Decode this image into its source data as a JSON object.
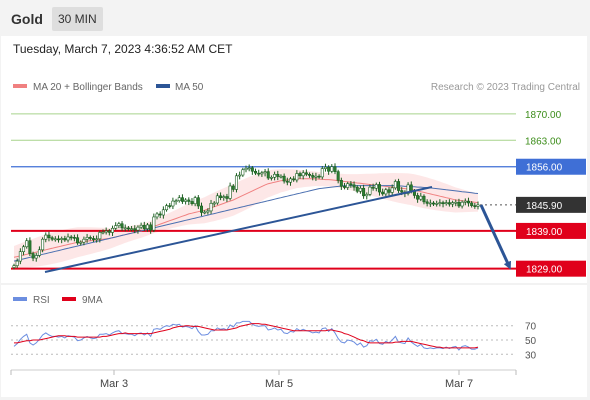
{
  "header": {
    "title": "Gold",
    "timeframe": "30 MIN"
  },
  "datetime": "Tuesday, March 7, 2023 4:36:52 AM CET",
  "legend": {
    "ma20_label": "MA 20 + Bollinger Bands",
    "ma50_label": "MA 50",
    "credit": "Research © 2023 Trading Central"
  },
  "rsi_legend": {
    "rsi_label": "RSI",
    "ma_label": "9MA"
  },
  "colors": {
    "candle_up": "#2e7d32",
    "candle_down": "#2e7d32",
    "bollinger_fill": "#fde3e3",
    "ma20": "#f08080",
    "ma50": "#4a6fb0",
    "trendline": "#2c5596",
    "resistance_green": "#a7d38c",
    "resistance_blue": "#3f6fd6",
    "support_red": "#e0001b",
    "last_price_tag": "#333333",
    "rsi_line": "#6c8ee0",
    "rsi_ma": "#e0001b"
  },
  "chart_data": [
    {
      "type": "candlestick",
      "x_ticks": [
        "Mar 3",
        "Mar 5",
        "Mar 7"
      ],
      "y_ticks": [
        "1870.00",
        "1863.00",
        "1856.00",
        "1845.90",
        "1839.00",
        "1829.00"
      ],
      "ylim": [
        1826,
        1875
      ],
      "levels": [
        {
          "label": "1870.00",
          "value": 1870.0,
          "kind": "resistance-light"
        },
        {
          "label": "1863.00",
          "value": 1863.0,
          "kind": "resistance-light"
        },
        {
          "label": "1856.00",
          "value": 1856.0,
          "kind": "resistance"
        },
        {
          "label": "1845.90",
          "value": 1845.9,
          "kind": "last-price"
        },
        {
          "label": "1839.00",
          "value": 1839.0,
          "kind": "support"
        },
        {
          "label": "1829.00",
          "value": 1829.0,
          "kind": "support"
        }
      ],
      "series": [
        {
          "name": "Gold",
          "close": [
            1829.8,
            1831.0,
            1833.5,
            1834.8,
            1836.4,
            1833.0,
            1831.8,
            1832.5,
            1834.0,
            1836.8,
            1837.9,
            1837.2,
            1836.8,
            1836.9,
            1836.7,
            1837.0,
            1836.6,
            1837.4,
            1837.3,
            1837.2,
            1835.8,
            1836.0,
            1836.8,
            1837.3,
            1837.0,
            1836.7,
            1836.9,
            1838.6,
            1838.7,
            1839.0,
            1838.6,
            1839.7,
            1840.4,
            1840.9,
            1839.8,
            1839.8,
            1839.5,
            1839.6,
            1839.2,
            1840.0,
            1840.5,
            1839.6,
            1840.6,
            1839.2,
            1842.7,
            1843.5,
            1843.2,
            1844.6,
            1845.7,
            1845.6,
            1846.9,
            1847.0,
            1847.8,
            1846.8,
            1847.2,
            1846.8,
            1846.2,
            1847.8,
            1845.6,
            1843.9,
            1844.0,
            1844.3,
            1846.3,
            1846.4,
            1848.3,
            1847.8,
            1848.1,
            1847.6,
            1850.9,
            1850.0,
            1853.6,
            1853.8,
            1855.2,
            1855.6,
            1855.7,
            1854.8,
            1854.3,
            1854.1,
            1854.4,
            1854.7,
            1853.0,
            1853.2,
            1854.0,
            1853.4,
            1853.5,
            1852.2,
            1851.9,
            1852.8,
            1852.5,
            1854.2,
            1853.6,
            1854.4,
            1854.0,
            1853.7,
            1853.2,
            1853.5,
            1853.3,
            1855.5,
            1855.9,
            1854.8,
            1856.0,
            1854.7,
            1852.4,
            1850.8,
            1850.5,
            1851.5,
            1851.2,
            1850.6,
            1849.5,
            1850.3,
            1848.3,
            1848.7,
            1850.6,
            1850.3,
            1851.3,
            1849.3,
            1848.8,
            1849.9,
            1849.2,
            1850.4,
            1852.1,
            1849.7,
            1849.3,
            1848.9,
            1851.2,
            1849.6,
            1848.4,
            1847.4,
            1848.2,
            1846.7,
            1846.3,
            1846.4,
            1846.1,
            1846.3,
            1846.5,
            1846.2,
            1846.5,
            1846.1,
            1846.5,
            1846.6,
            1845.6,
            1846.6,
            1846.9,
            1846.4,
            1845.7,
            1845.5,
            1845.9
          ],
          "ma20": [
            1832.0,
            1832.2,
            1832.4,
            1832.6,
            1832.8,
            1833.0,
            1833.2,
            1833.4,
            1833.6,
            1833.8,
            1834.0,
            1834.2,
            1834.4,
            1834.6,
            1834.8,
            1835.0,
            1835.2,
            1835.4,
            1835.6,
            1835.8,
            1836.0,
            1836.1,
            1836.2,
            1836.3,
            1836.4,
            1836.5,
            1836.6,
            1836.7,
            1836.8,
            1836.9,
            1837.0,
            1837.2,
            1837.4,
            1837.6,
            1837.8,
            1838.0,
            1838.2,
            1838.4,
            1838.6,
            1838.8,
            1839.0,
            1839.3,
            1839.6,
            1839.9,
            1840.2,
            1840.5,
            1840.8,
            1841.1,
            1841.4,
            1841.7,
            1842.0,
            1842.3,
            1842.6,
            1842.9,
            1843.2,
            1843.5,
            1843.7,
            1843.9,
            1844.1,
            1844.3,
            1844.5,
            1844.8,
            1845.1,
            1845.4,
            1845.7,
            1846.0,
            1846.3,
            1846.6,
            1846.9,
            1847.2,
            1847.6,
            1848.0,
            1848.4,
            1848.8,
            1849.2,
            1849.6,
            1850.0,
            1850.4,
            1850.8,
            1851.2,
            1851.5,
            1851.7,
            1851.9,
            1852.1,
            1852.3,
            1852.4,
            1852.5,
            1852.6,
            1852.7,
            1852.8,
            1852.8,
            1852.8,
            1852.8,
            1852.8,
            1852.8,
            1852.8,
            1852.7,
            1852.7,
            1852.6,
            1852.6,
            1852.5,
            1852.4,
            1852.3,
            1852.2,
            1852.1,
            1852.0,
            1851.9,
            1851.8,
            1851.7,
            1851.6,
            1851.5,
            1851.4,
            1851.3,
            1851.2,
            1851.1,
            1851.0,
            1850.9,
            1850.8,
            1850.7,
            1850.6,
            1850.5,
            1850.4,
            1850.3,
            1850.2,
            1850.1,
            1850.0,
            1849.8,
            1849.6,
            1849.4,
            1849.2,
            1849.0,
            1848.8,
            1848.6,
            1848.4,
            1848.2,
            1848.0,
            1847.8,
            1847.6,
            1847.4,
            1847.2,
            1847.1,
            1847.0,
            1846.9,
            1846.8,
            1846.7,
            1846.6,
            1846.5
          ],
          "ma50": [
            1831.0,
            1831.2,
            1831.4,
            1831.6,
            1831.8,
            1832.0,
            1832.2,
            1832.4,
            1832.6,
            1832.8,
            1833.0,
            1833.2,
            1833.4,
            1833.6,
            1833.8,
            1834.0,
            1834.2,
            1834.4,
            1834.6,
            1834.8,
            1835.0,
            1835.2,
            1835.4,
            1835.6,
            1835.8,
            1836.0,
            1836.2,
            1836.4,
            1836.6,
            1836.8,
            1837.0,
            1837.2,
            1837.4,
            1837.6,
            1837.8,
            1838.0,
            1838.2,
            1838.4,
            1838.6,
            1838.8,
            1839.0,
            1839.2,
            1839.4,
            1839.6,
            1839.8,
            1840.0,
            1840.2,
            1840.4,
            1840.6,
            1840.8,
            1841.0,
            1841.2,
            1841.4,
            1841.6,
            1841.8,
            1842.0,
            1842.2,
            1842.4,
            1842.6,
            1842.8,
            1843.0,
            1843.2,
            1843.4,
            1843.6,
            1843.8,
            1844.0,
            1844.2,
            1844.4,
            1844.6,
            1844.8,
            1845.0,
            1845.2,
            1845.4,
            1845.6,
            1845.8,
            1846.0,
            1846.2,
            1846.4,
            1846.6,
            1846.8,
            1847.0,
            1847.2,
            1847.4,
            1847.6,
            1847.8,
            1848.0,
            1848.2,
            1848.4,
            1848.6,
            1848.8,
            1849.0,
            1849.2,
            1849.4,
            1849.6,
            1849.8,
            1850.0,
            1850.2,
            1850.3,
            1850.4,
            1850.5,
            1850.6,
            1850.7,
            1850.8,
            1850.9,
            1851.0,
            1851.0,
            1851.0,
            1851.0,
            1851.0,
            1851.0,
            1851.0,
            1851.0,
            1851.0,
            1851.0,
            1851.0,
            1851.0,
            1851.0,
            1851.0,
            1851.0,
            1851.0,
            1851.0,
            1850.9,
            1850.9,
            1850.8,
            1850.8,
            1850.7,
            1850.7,
            1850.6,
            1850.6,
            1850.5,
            1850.5,
            1850.4,
            1850.3,
            1850.2,
            1850.1,
            1850.0,
            1849.9,
            1849.8,
            1849.7,
            1849.6,
            1849.5,
            1849.4,
            1849.3,
            1849.2,
            1849.1,
            1849.0,
            1848.9
          ]
        }
      ]
    },
    {
      "type": "line",
      "title": "RSI",
      "y_ticks": [
        "70",
        "50",
        "30"
      ],
      "ylim": [
        15,
        85
      ],
      "series": [
        {
          "name": "RSI",
          "values": [
            41,
            45,
            51,
            55,
            58,
            46,
            43,
            46,
            51,
            57,
            60,
            57,
            55,
            55,
            54,
            55,
            53,
            56,
            55,
            54,
            49,
            50,
            53,
            55,
            53,
            52,
            53,
            58,
            58,
            59,
            57,
            60,
            62,
            63,
            59,
            59,
            58,
            58,
            56,
            59,
            60,
            57,
            60,
            55,
            65,
            66,
            65,
            68,
            70,
            69,
            72,
            71,
            72,
            68,
            69,
            68,
            66,
            70,
            62,
            57,
            57,
            58,
            63,
            63,
            67,
            65,
            66,
            64,
            71,
            68,
            74,
            74,
            76,
            76,
            76,
            72,
            70,
            69,
            70,
            70,
            64,
            65,
            67,
            64,
            65,
            60,
            59,
            62,
            61,
            66,
            63,
            65,
            63,
            62,
            60,
            61,
            60,
            66,
            67,
            62,
            66,
            60,
            52,
            47,
            46,
            50,
            49,
            47,
            43,
            46,
            40,
            42,
            49,
            48,
            51,
            45,
            44,
            48,
            46,
            50,
            55,
            47,
            46,
            45,
            53,
            47,
            44,
            41,
            44,
            39,
            38,
            39,
            38,
            39,
            39,
            38,
            40,
            38,
            40,
            41,
            36,
            41,
            42,
            40,
            37,
            37,
            39
          ]
        },
        {
          "name": "9MA",
          "values": [
            46,
            46,
            47,
            48,
            49,
            49,
            50,
            50,
            50,
            51,
            52,
            53,
            54,
            55,
            56,
            56,
            56,
            55,
            55,
            55,
            54,
            54,
            54,
            54,
            54,
            54,
            54,
            54,
            55,
            55,
            56,
            57,
            58,
            59,
            59,
            60,
            59,
            59,
            59,
            59,
            59,
            59,
            59,
            59,
            60,
            61,
            62,
            63,
            64,
            65,
            67,
            68,
            69,
            69,
            70,
            70,
            69,
            69,
            69,
            68,
            67,
            66,
            65,
            64,
            64,
            64,
            64,
            64,
            65,
            66,
            67,
            69,
            70,
            71,
            72,
            73,
            73,
            73,
            72,
            72,
            71,
            70,
            69,
            68,
            67,
            66,
            65,
            64,
            63,
            63,
            63,
            63,
            63,
            63,
            63,
            63,
            63,
            63,
            63,
            64,
            64,
            63,
            62,
            61,
            59,
            58,
            56,
            54,
            52,
            50,
            49,
            47,
            46,
            46,
            46,
            46,
            46,
            46,
            46,
            46,
            47,
            47,
            48,
            48,
            48,
            48,
            47,
            46,
            45,
            44,
            43,
            42,
            41,
            40,
            40,
            39,
            39,
            39,
            39,
            39,
            39,
            39,
            39,
            39,
            39,
            39,
            40
          ]
        }
      ]
    }
  ]
}
